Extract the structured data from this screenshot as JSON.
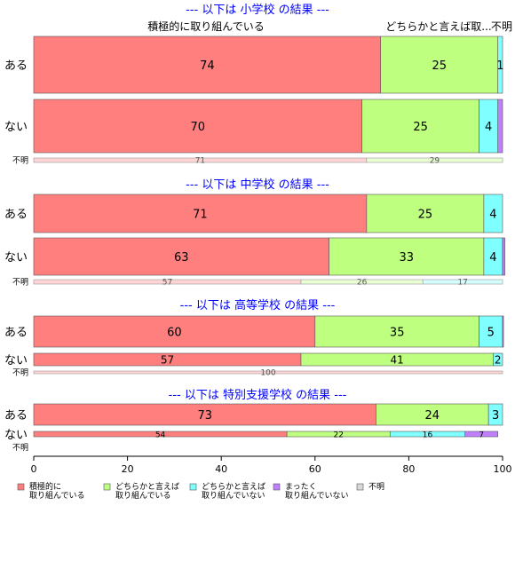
{
  "chart_data": {
    "type": "bar",
    "orientation": "horizontal",
    "stacked": "percent",
    "xlim": [
      0,
      100
    ],
    "x_ticks": [
      "0",
      "20",
      "40",
      "60",
      "80",
      "100"
    ],
    "top_category_labels": [
      "積極的に取り組んでいる",
      "どちらかと言えば取...",
      "不明"
    ],
    "legend": [
      {
        "label_line1": "積極的に",
        "label_line2": "取り組んでいる",
        "color": "#ff7f7f"
      },
      {
        "label_line1": "どちらかと言えば",
        "label_line2": "取り組んでいる",
        "color": "#bfff7f"
      },
      {
        "label_line1": "どちらかと言えば",
        "label_line2": "取り組んでいない",
        "color": "#7fffff"
      },
      {
        "label_line1": "まったく",
        "label_line2": "取り組んでいない",
        "color": "#bf7fff"
      },
      {
        "label_line1": "不明",
        "label_line2": "",
        "color": "#d9d9d9"
      }
    ],
    "panels": [
      {
        "title": "--- 以下は 小学校 の結果 ---",
        "rows": [
          {
            "label": "ある",
            "values": [
              74,
              25,
              1,
              0
            ],
            "labels": [
              "74",
              "25",
              "1",
              ""
            ]
          },
          {
            "label": "ない",
            "values": [
              70,
              25,
              4,
              1
            ],
            "labels": [
              "70",
              "25",
              "4",
              ""
            ]
          },
          {
            "label": "不明",
            "values": [
              71,
              29,
              0,
              0
            ],
            "labels": [
              "71",
              "29",
              "",
              ""
            ]
          }
        ]
      },
      {
        "title": "--- 以下は 中学校 の結果 ---",
        "rows": [
          {
            "label": "ある",
            "values": [
              71,
              25,
              4,
              0
            ],
            "labels": [
              "71",
              "25",
              "4",
              ""
            ]
          },
          {
            "label": "ない",
            "values": [
              63,
              33,
              4,
              0.5
            ],
            "labels": [
              "63",
              "33",
              "4",
              ""
            ]
          },
          {
            "label": "不明",
            "values": [
              57,
              26,
              17,
              0
            ],
            "labels": [
              "57",
              "26",
              "17",
              ""
            ]
          }
        ]
      },
      {
        "title": "--- 以下は 高等学校 の結果 ---",
        "rows": [
          {
            "label": "ある",
            "values": [
              60,
              35,
              5,
              0.2
            ],
            "labels": [
              "60",
              "35",
              "5",
              ""
            ]
          },
          {
            "label": "ない",
            "values": [
              57,
              41,
              2,
              0
            ],
            "labels": [
              "57",
              "41",
              "2",
              ""
            ]
          },
          {
            "label": "不明",
            "values": [
              100,
              0,
              0,
              0
            ],
            "labels": [
              "100",
              "",
              "",
              ""
            ]
          }
        ]
      },
      {
        "title": "--- 以下は 特別支援学校 の結果 ---",
        "rows": [
          {
            "label": "ある",
            "values": [
              73,
              24,
              3,
              0
            ],
            "labels": [
              "73",
              "24",
              "3",
              ""
            ]
          },
          {
            "label": "ない",
            "values": [
              54,
              22,
              16,
              7
            ],
            "labels": [
              "54",
              "22",
              "16",
              "7"
            ]
          },
          {
            "label": "不明",
            "values": [
              0,
              0,
              0,
              0
            ],
            "labels": [
              "",
              "",
              "",
              ""
            ]
          }
        ]
      }
    ]
  }
}
